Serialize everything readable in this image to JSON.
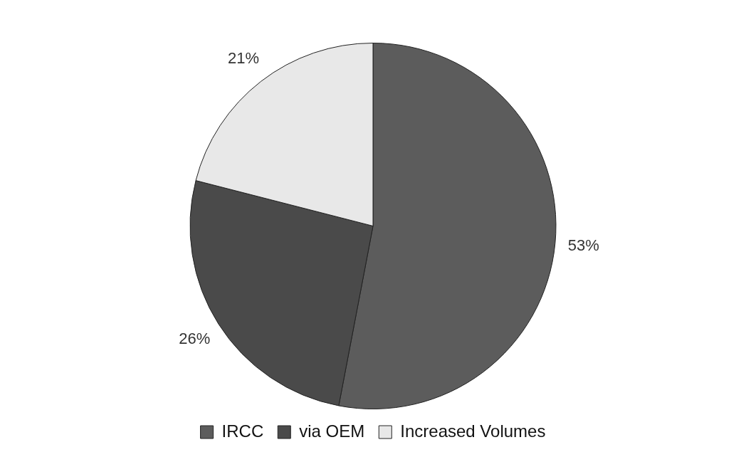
{
  "chart_data": {
    "type": "pie",
    "categories": [
      "IRCC",
      "via OEM",
      "Increased Volumes"
    ],
    "values": [
      53,
      26,
      21
    ],
    "colors": [
      "#5c5c5c",
      "#4a4a4a",
      "#e8e8e8"
    ],
    "value_labels": [
      "53%",
      "26%",
      "21%"
    ],
    "legend": "bottom"
  }
}
